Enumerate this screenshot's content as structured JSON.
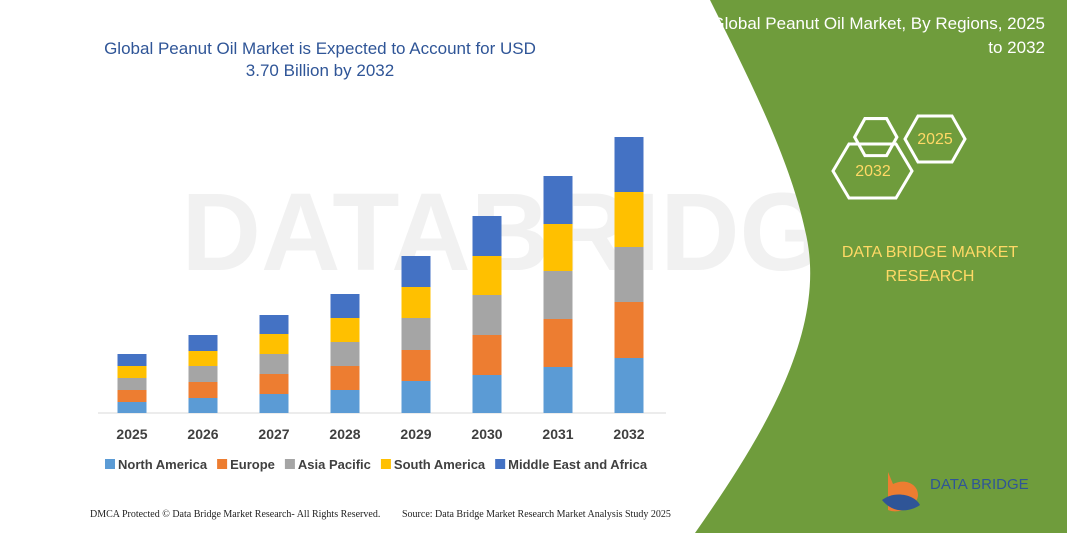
{
  "chart_data": {
    "type": "bar",
    "stacked": true,
    "title": "Global Peanut Oil Market is Expected to Account for USD 3.70 Billion by 2032",
    "categories": [
      "2025",
      "2026",
      "2027",
      "2028",
      "2029",
      "2030",
      "2031",
      "2032"
    ],
    "series": [
      {
        "name": "North America",
        "color": "#5b9bd5",
        "values": [
          11,
          15,
          19,
          23,
          32,
          38,
          46,
          55
        ]
      },
      {
        "name": "Europe",
        "color": "#ed7d31",
        "values": [
          12,
          16,
          20,
          24,
          31,
          40,
          48,
          56
        ]
      },
      {
        "name": "Asia Pacific",
        "color": "#a5a5a5",
        "values": [
          12,
          16,
          20,
          24,
          32,
          40,
          48,
          55
        ]
      },
      {
        "name": "South America",
        "color": "#ffc000",
        "values": [
          12,
          15,
          20,
          24,
          31,
          39,
          47,
          55
        ]
      },
      {
        "name": "Middle East and Africa",
        "color": "#4472c4",
        "values": [
          12,
          16,
          19,
          24,
          31,
          40,
          48,
          55
        ]
      }
    ],
    "ylim": [
      0,
      300
    ],
    "legend": "bottom"
  },
  "panel": {
    "title": "Global Peanut Oil Market, By Regions, 2025 to 2032",
    "hex_end": "2032",
    "hex_start": "2025",
    "brand": "DATA BRIDGE MARKET RESEARCH"
  },
  "logo": {
    "text": "DATA BRIDGE"
  },
  "footer": {
    "left": "DMCA Protected © Data Bridge Market Research- All Rights Reserved.",
    "right": "Source: Data Bridge Market Research Market Analysis Study 2025"
  }
}
